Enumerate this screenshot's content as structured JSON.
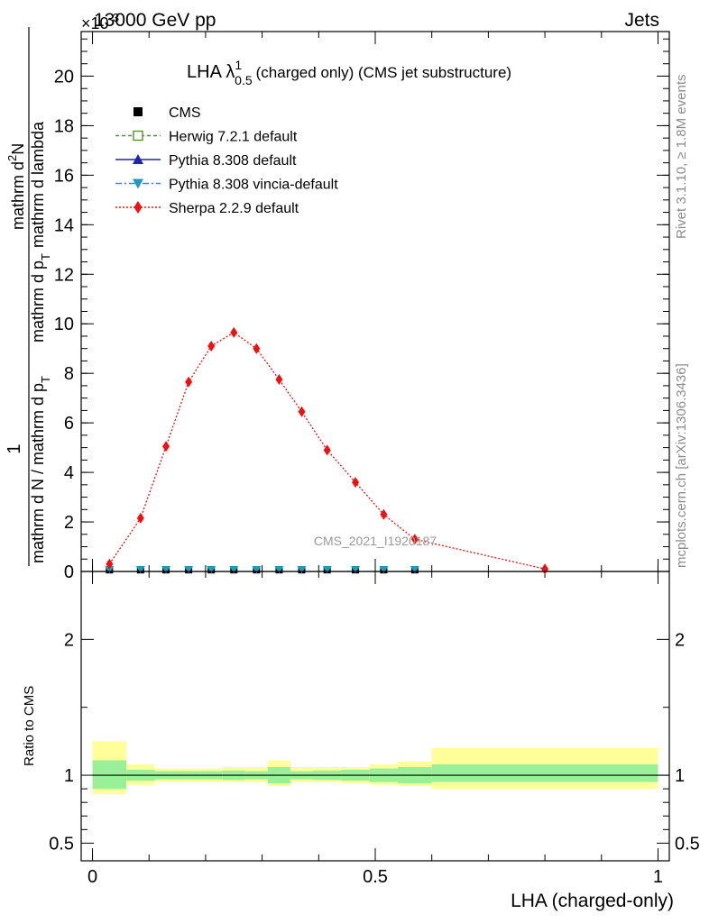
{
  "header": {
    "energy": "13000 GeV pp",
    "category": "Jets",
    "exponent": "×10",
    "exponent_power": "-3"
  },
  "side_texts": {
    "rivet": "Rivet 3.1.10, ≥ 1.8M events",
    "mcplots": "mcplots.cern.ch [arXiv:1306.3436]"
  },
  "title": {
    "prefix": "LHA λ",
    "superscript": "1",
    "subscript": "0.5",
    "suffix": "(charged only) (CMS jet substructure)"
  },
  "watermark": "CMS_2021_I1920187",
  "main_ylabel": {
    "numerator_one": "1",
    "denominator": "mathrm d N / mathrm d p",
    "denominator_sub": "T",
    "numerator": "mathrm d",
    "numerator_sup": "2",
    "numerator_N": "N",
    "numerator_rest": "mathrm d p",
    "numerator_rest_sub": "T",
    "numerator_end": "mathrm d lambda"
  },
  "ratio_ylabel": "Ratio to CMS",
  "xlabel": "LHA (charged-only)",
  "legend": [
    {
      "label": "CMS",
      "marker": "square",
      "color": "#000000",
      "dash": "none"
    },
    {
      "label": "Herwig 7.2.1 default",
      "marker": "open-square",
      "color": "#4f9a1a",
      "dash": "4,3"
    },
    {
      "label": "Pythia 8.308 default",
      "marker": "triangle-up",
      "color": "#1f24b4",
      "dash": "none"
    },
    {
      "label": "Pythia 8.308 vincia-default",
      "marker": "triangle-down",
      "color": "#1e9bc1",
      "dash": "7,3,2,3"
    },
    {
      "label": "Sherpa 2.2.9 default",
      "marker": "diamond",
      "color": "#ef1010",
      "dash": "2,2"
    }
  ],
  "chart_data": {
    "type": "line",
    "x_range": [
      -0.02,
      1.02
    ],
    "main_ylim": [
      0,
      0.0218
    ],
    "main_yticks": [
      "0",
      "2",
      "4",
      "6",
      "8",
      "10",
      "12",
      "14",
      "16",
      "18",
      "20"
    ],
    "ratio_ylim": [
      0.37,
      2.5
    ],
    "ratio_yticks": [
      {
        "value": 0.5,
        "label": "0.5"
      },
      {
        "value": 1,
        "label": "1"
      },
      {
        "value": 2,
        "label": "2"
      }
    ],
    "xticks": [
      {
        "value": 0,
        "label": "0"
      },
      {
        "value": 0.5,
        "label": "0.5"
      },
      {
        "value": 1,
        "label": "1"
      }
    ],
    "bins": [
      0,
      0.06,
      0.11,
      0.15,
      0.19,
      0.23,
      0.27,
      0.31,
      0.35,
      0.39,
      0.44,
      0.49,
      0.54,
      0.6,
      1.0
    ],
    "cms_centers": [
      0.03,
      0.085,
      0.13,
      0.17,
      0.21,
      0.25,
      0.29,
      0.33,
      0.37,
      0.415,
      0.465,
      0.515,
      0.57
    ],
    "cms_values": [
      3e-05,
      3e-05,
      3e-05,
      3e-05,
      3e-05,
      3e-05,
      3e-05,
      3e-05,
      3e-05,
      3e-05,
      3e-05,
      3e-05,
      3e-05
    ],
    "sherpa_x": [
      0.03,
      0.085,
      0.13,
      0.17,
      0.21,
      0.25,
      0.29,
      0.33,
      0.37,
      0.415,
      0.465,
      0.515,
      0.57,
      0.8
    ],
    "sherpa_y": [
      0.0003,
      0.00215,
      0.00505,
      0.00765,
      0.0091,
      0.00965,
      0.009,
      0.00775,
      0.00645,
      0.0049,
      0.0036,
      0.0023,
      0.0013,
      0.0001
    ],
    "ratio_band_inner": [
      {
        "lo": 0.9,
        "hi": 1.11
      },
      {
        "lo": 0.96,
        "hi": 1.04
      },
      {
        "lo": 0.97,
        "hi": 1.03
      },
      {
        "lo": 0.97,
        "hi": 1.03
      },
      {
        "lo": 0.97,
        "hi": 1.03
      },
      {
        "lo": 0.965,
        "hi": 1.035
      },
      {
        "lo": 0.97,
        "hi": 1.03
      },
      {
        "lo": 0.94,
        "hi": 1.06
      },
      {
        "lo": 0.97,
        "hi": 1.03
      },
      {
        "lo": 0.965,
        "hi": 1.035
      },
      {
        "lo": 0.96,
        "hi": 1.04
      },
      {
        "lo": 0.95,
        "hi": 1.05
      },
      {
        "lo": 0.94,
        "hi": 1.06
      },
      {
        "lo": 0.95,
        "hi": 1.08
      }
    ],
    "ratio_band_outer": [
      {
        "lo": 0.86,
        "hi": 1.25
      },
      {
        "lo": 0.93,
        "hi": 1.08
      },
      {
        "lo": 0.95,
        "hi": 1.05
      },
      {
        "lo": 0.95,
        "hi": 1.05
      },
      {
        "lo": 0.95,
        "hi": 1.05
      },
      {
        "lo": 0.95,
        "hi": 1.06
      },
      {
        "lo": 0.95,
        "hi": 1.06
      },
      {
        "lo": 0.92,
        "hi": 1.11
      },
      {
        "lo": 0.95,
        "hi": 1.06
      },
      {
        "lo": 0.95,
        "hi": 1.06
      },
      {
        "lo": 0.94,
        "hi": 1.06
      },
      {
        "lo": 0.93,
        "hi": 1.08
      },
      {
        "lo": 0.92,
        "hi": 1.1
      },
      {
        "lo": 0.9,
        "hi": 1.2
      }
    ]
  }
}
